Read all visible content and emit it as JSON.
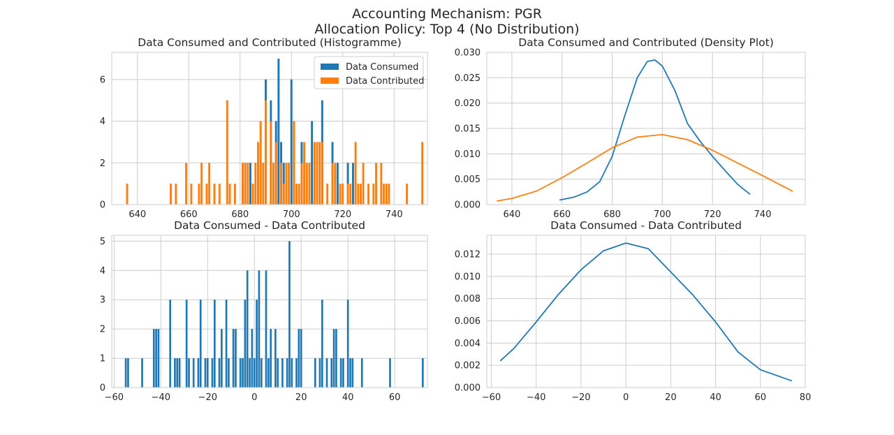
{
  "figure": {
    "suptitle_line1": "Accounting Mechanism: PGR",
    "suptitle_line2": "Allocation Policy: Top 4 (No Distribution)"
  },
  "colors": {
    "blue": "#1f77b4",
    "orange": "#ff7f0e",
    "grid": "#cccccc",
    "axes": "#cccccc"
  },
  "chart_data": [
    {
      "type": "bar",
      "title": "Data Consumed and Contributed (Histogramme)",
      "xlabel": "",
      "ylabel": "",
      "xlim": [
        630,
        753
      ],
      "ylim": [
        0,
        7.3
      ],
      "xticks": [
        640,
        660,
        680,
        700,
        720,
        740
      ],
      "yticks": [
        0,
        2,
        4,
        6
      ],
      "grid": true,
      "legend": {
        "placement": "upper right",
        "entries": [
          "Data Consumed",
          "Data Contributed"
        ]
      },
      "series": [
        {
          "name": "Data Consumed",
          "color": "#1f77b4",
          "bins": [
            [
              681,
              1
            ],
            [
              682,
              2
            ],
            [
              684,
              2
            ],
            [
              687,
              2
            ],
            [
              690,
              6
            ],
            [
              692,
              5
            ],
            [
              694,
              4
            ],
            [
              695,
              7
            ],
            [
              696,
              3
            ],
            [
              697,
              2
            ],
            [
              700,
              6
            ],
            [
              701,
              4
            ],
            [
              704,
              3
            ],
            [
              708,
              4
            ],
            [
              710,
              3
            ],
            [
              712,
              5
            ],
            [
              716,
              3
            ],
            [
              718,
              2
            ],
            [
              722,
              2
            ],
            [
              724,
              2
            ]
          ]
        },
        {
          "name": "Data Contributed",
          "color": "#ff7f0e",
          "bins": [
            [
              636,
              1
            ],
            [
              653,
              1
            ],
            [
              655,
              1
            ],
            [
              659,
              2
            ],
            [
              661,
              1
            ],
            [
              664,
              1
            ],
            [
              665,
              2
            ],
            [
              667,
              1
            ],
            [
              668,
              2
            ],
            [
              670,
              1
            ],
            [
              672,
              1
            ],
            [
              675,
              5
            ],
            [
              676,
              1
            ],
            [
              678,
              1
            ],
            [
              681,
              2
            ],
            [
              682,
              2
            ],
            [
              683,
              2
            ],
            [
              685,
              1
            ],
            [
              686,
              2
            ],
            [
              687,
              3
            ],
            [
              688,
              4
            ],
            [
              689,
              2
            ],
            [
              690,
              5
            ],
            [
              692,
              4
            ],
            [
              693,
              2
            ],
            [
              694,
              3
            ],
            [
              696,
              2
            ],
            [
              697,
              1
            ],
            [
              698,
              2
            ],
            [
              699,
              2
            ],
            [
              701,
              4
            ],
            [
              702,
              1
            ],
            [
              703,
              1
            ],
            [
              704,
              2
            ],
            [
              705,
              3
            ],
            [
              706,
              2
            ],
            [
              707,
              2
            ],
            [
              709,
              3
            ],
            [
              710,
              3
            ],
            [
              711,
              3
            ],
            [
              712,
              3
            ],
            [
              714,
              1
            ],
            [
              716,
              2
            ],
            [
              717,
              2
            ],
            [
              719,
              1
            ],
            [
              720,
              1
            ],
            [
              722,
              1
            ],
            [
              723,
              1
            ],
            [
              725,
              3
            ],
            [
              726,
              1
            ],
            [
              727,
              1
            ],
            [
              728,
              2
            ],
            [
              730,
              1
            ],
            [
              732,
              1
            ],
            [
              733,
              2
            ],
            [
              735,
              2
            ],
            [
              736,
              1
            ],
            [
              737,
              1
            ],
            [
              738,
              1
            ],
            [
              745,
              1
            ],
            [
              751,
              3
            ]
          ]
        }
      ]
    },
    {
      "type": "line",
      "title": "Data Consumed and Contributed (Density Plot)",
      "xlabel": "",
      "ylabel": "",
      "xlim": [
        630,
        757
      ],
      "ylim": [
        0,
        0.03
      ],
      "xticks": [
        640,
        660,
        680,
        700,
        720,
        740
      ],
      "yticks": [
        0.0,
        0.005,
        0.01,
        0.015,
        0.02,
        0.025,
        0.03
      ],
      "grid": true,
      "series": [
        {
          "name": "Data Consumed",
          "color": "#1f77b4",
          "x": [
            659,
            665,
            670,
            675,
            680,
            685,
            690,
            694,
            697,
            700,
            705,
            710,
            715,
            720,
            725,
            730,
            735
          ],
          "y": [
            0.0009,
            0.0015,
            0.0025,
            0.0045,
            0.0095,
            0.0175,
            0.025,
            0.0282,
            0.0285,
            0.0273,
            0.0225,
            0.016,
            0.0125,
            0.0095,
            0.0067,
            0.004,
            0.002
          ]
        },
        {
          "name": "Data Contributed",
          "color": "#ff7f0e",
          "x": [
            634,
            640,
            650,
            660,
            670,
            680,
            690,
            700,
            710,
            720,
            730,
            740,
            752
          ],
          "y": [
            0.0007,
            0.0012,
            0.0027,
            0.0053,
            0.0082,
            0.0112,
            0.0133,
            0.0138,
            0.0128,
            0.0107,
            0.0082,
            0.0057,
            0.0026
          ]
        }
      ]
    },
    {
      "type": "bar",
      "title": "Data Consumed - Data Contributed",
      "xlabel": "",
      "ylabel": "",
      "xlim": [
        -61,
        74
      ],
      "ylim": [
        0,
        5.2
      ],
      "xticks": [
        -60,
        -40,
        -20,
        0,
        20,
        40,
        60
      ],
      "yticks": [
        0,
        1,
        2,
        3,
        4,
        5
      ],
      "grid": true,
      "series": [
        {
          "name": "",
          "color": "#1f77b4",
          "bins": [
            [
              -55,
              1
            ],
            [
              -54,
              1
            ],
            [
              -48,
              1
            ],
            [
              -43,
              2
            ],
            [
              -42,
              2
            ],
            [
              -41,
              2
            ],
            [
              -36,
              3
            ],
            [
              -34,
              1
            ],
            [
              -33,
              1
            ],
            [
              -32,
              1
            ],
            [
              -29,
              3
            ],
            [
              -28,
              1
            ],
            [
              -26,
              1
            ],
            [
              -24,
              1
            ],
            [
              -23,
              3
            ],
            [
              -21,
              1
            ],
            [
              -20,
              1
            ],
            [
              -18,
              1
            ],
            [
              -17,
              3
            ],
            [
              -15,
              1
            ],
            [
              -14,
              2
            ],
            [
              -12,
              3
            ],
            [
              -11,
              1
            ],
            [
              -9,
              2
            ],
            [
              -8,
              2
            ],
            [
              -6,
              1
            ],
            [
              -5,
              1
            ],
            [
              -4,
              3
            ],
            [
              -3,
              4
            ],
            [
              -2,
              1
            ],
            [
              -1,
              2
            ],
            [
              0,
              1
            ],
            [
              1,
              3
            ],
            [
              2,
              4
            ],
            [
              3,
              1
            ],
            [
              5,
              4
            ],
            [
              6,
              1
            ],
            [
              7,
              2
            ],
            [
              9,
              2
            ],
            [
              10,
              1
            ],
            [
              12,
              1
            ],
            [
              14,
              1
            ],
            [
              15,
              5
            ],
            [
              16,
              1
            ],
            [
              18,
              1
            ],
            [
              19,
              2
            ],
            [
              20,
              2
            ],
            [
              26,
              1
            ],
            [
              28,
              1
            ],
            [
              29,
              3
            ],
            [
              31,
              1
            ],
            [
              33,
              1
            ],
            [
              34,
              2
            ],
            [
              35,
              2
            ],
            [
              37,
              1
            ],
            [
              38,
              1
            ],
            [
              40,
              3
            ],
            [
              41,
              1
            ],
            [
              42,
              1
            ],
            [
              46,
              1
            ],
            [
              58,
              1
            ],
            [
              72,
              1
            ]
          ]
        }
      ]
    },
    {
      "type": "line",
      "title": "Data Consumed - Data Contributed",
      "xlabel": "",
      "ylabel": "",
      "xlim": [
        -62,
        80
      ],
      "ylim": [
        0,
        0.0137
      ],
      "xticks": [
        -60,
        -40,
        -20,
        0,
        20,
        40,
        60,
        80
      ],
      "yticks": [
        0.0,
        0.002,
        0.004,
        0.006,
        0.008,
        0.01,
        0.012
      ],
      "grid": true,
      "series": [
        {
          "name": "",
          "color": "#1f77b4",
          "x": [
            -56,
            -50,
            -40,
            -30,
            -20,
            -10,
            0,
            10,
            20,
            30,
            40,
            50,
            60,
            74
          ],
          "y": [
            0.0024,
            0.0035,
            0.0059,
            0.0084,
            0.0106,
            0.0123,
            0.013,
            0.0125,
            0.0104,
            0.0083,
            0.0059,
            0.0032,
            0.0016,
            0.0006
          ]
        }
      ]
    }
  ]
}
